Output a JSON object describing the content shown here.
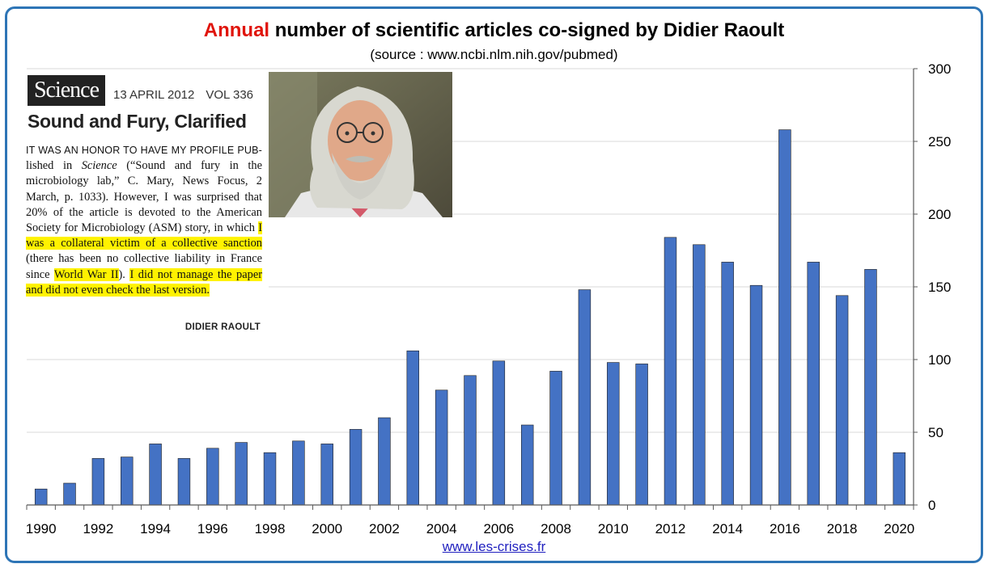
{
  "header": {
    "title_accent": "Annual",
    "title_rest": " number of scientific articles co-signed by Didier Raoult",
    "subtitle": "(source : www.ncbi.nlm.nih.gov/pubmed)"
  },
  "footer": {
    "link": "www.les-crises.fr"
  },
  "clipping": {
    "logo": "Science",
    "date": "13 APRIL 2012",
    "volume": "VOL 336",
    "headline": "Sound and Fury, Clarified",
    "p_caps": "IT WAS AN HONOR TO HAVE MY PROFILE PUB-",
    "p1": "lished in ",
    "p_journal": "Science",
    "p2": " (“Sound and fury in the microbiology lab,” C. Mary, News Focus, 2 March, p. 1033). However, I was surprised that 20% of the article is devoted to the American Society for Microbiology (ASM) story, in which ",
    "hl1": "I was a collateral victim of a collective sanction",
    "p3": " (there has been no collective liability in France since ",
    "hl2": "World War II",
    "p4": "). ",
    "hl3": "I did not manage the paper and did not even check the last version.",
    "signature": "DIDIER RAOULT"
  },
  "colors": {
    "bar": "#4472c4",
    "bar_edge": "#1f1f1f",
    "frame": "#2e75b6",
    "title_accent": "#e0140b",
    "highlight": "#fff200",
    "link": "#1f1fbf"
  },
  "chart_data": {
    "type": "bar",
    "categories": [
      "1990",
      "1991",
      "1992",
      "1993",
      "1994",
      "1995",
      "1996",
      "1997",
      "1998",
      "1999",
      "2000",
      "2001",
      "2002",
      "2003",
      "2004",
      "2005",
      "2006",
      "2007",
      "2008",
      "2009",
      "2010",
      "2011",
      "2012",
      "2013",
      "2014",
      "2015",
      "2016",
      "2017",
      "2018",
      "2019",
      "2020"
    ],
    "x_tick_labels": [
      "1990",
      "1992",
      "1994",
      "1996",
      "1998",
      "2000",
      "2002",
      "2004",
      "2006",
      "2008",
      "2010",
      "2012",
      "2014",
      "2016",
      "2018",
      "2020"
    ],
    "values": [
      11,
      15,
      32,
      33,
      42,
      32,
      39,
      43,
      36,
      44,
      42,
      52,
      60,
      106,
      79,
      89,
      99,
      55,
      92,
      148,
      98,
      97,
      184,
      179,
      167,
      151,
      258,
      167,
      144,
      162,
      36
    ],
    "ylim": [
      0,
      300
    ],
    "y_ticks": [
      0,
      50,
      100,
      150,
      200,
      250,
      300
    ],
    "y_axis_side": "right",
    "grid": true
  }
}
